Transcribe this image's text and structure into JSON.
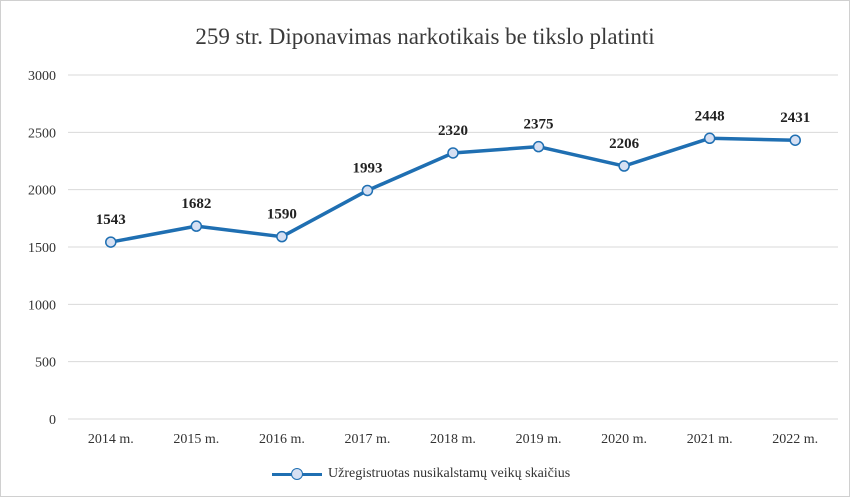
{
  "chart_data": {
    "type": "line",
    "title": "259 str. Diponavimas narkotikais be tikslo platinti",
    "categories": [
      "2014 m.",
      "2015 m.",
      "2016 m.",
      "2017 m.",
      "2018 m.",
      "2019 m.",
      "2020 m.",
      "2021 m.",
      "2022 m."
    ],
    "series": [
      {
        "name": "Užregistruotas nusikalstamų veikų skaičius",
        "values": [
          1543,
          1682,
          1590,
          1993,
          2320,
          2375,
          2206,
          2448,
          2431
        ],
        "color": "#1f6fb2",
        "marker_fill": "#d6e0f3"
      }
    ],
    "ylim": [
      0,
      3000
    ],
    "yticks": [
      "0",
      "500",
      "1000",
      "1500",
      "2000",
      "2500",
      "3000"
    ],
    "grid": true,
    "legend_position": "bottom",
    "xlabel": "",
    "ylabel": ""
  }
}
